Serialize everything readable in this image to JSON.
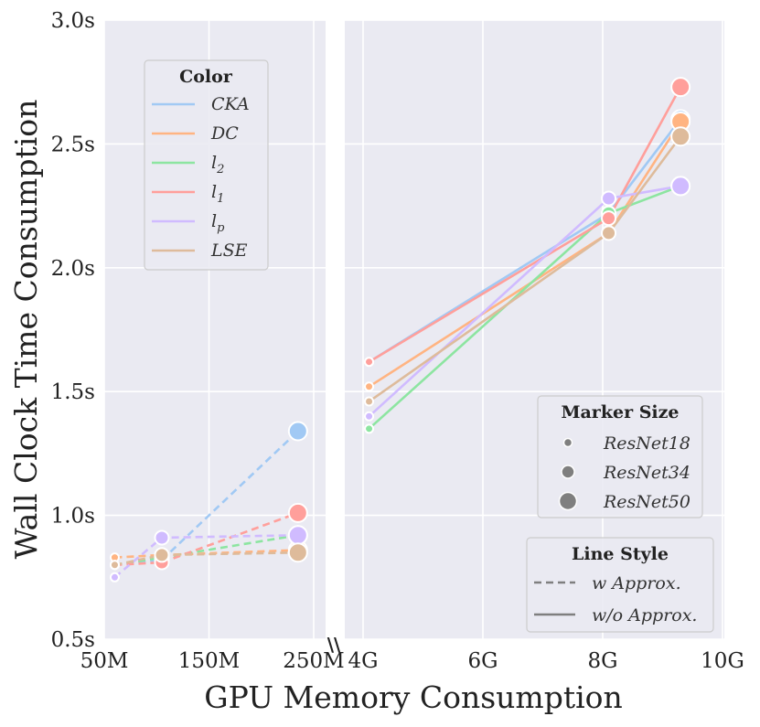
{
  "chart_data": {
    "type": "line",
    "title": "",
    "xlabel": "GPU Memory Consumption",
    "ylabel": "Wall Clock Time Consumption",
    "ylim": [
      0.5,
      3.0
    ],
    "yticks": [
      "0.5s",
      "1.0s",
      "1.5s",
      "2.0s",
      "2.5s",
      "3.0s"
    ],
    "ytick_values": [
      0.5,
      1.0,
      1.5,
      2.0,
      2.5,
      3.0
    ],
    "x_segments": [
      {
        "range_mb": [
          50,
          280
        ],
        "ticks": [
          {
            "value": 50,
            "label": "50M"
          },
          {
            "value": 150,
            "label": "150M"
          },
          {
            "value": 250,
            "label": "250M"
          }
        ]
      },
      {
        "range_gb": [
          3.9,
          10
        ],
        "ticks": [
          {
            "value": 4,
            "label": "4G"
          },
          {
            "value": 6,
            "label": "6G"
          },
          {
            "value": 8,
            "label": "8G"
          },
          {
            "value": 10,
            "label": "10G"
          }
        ]
      }
    ],
    "axis_break_mark": "\\\\",
    "grid": true,
    "legends": {
      "color": {
        "title": "Color",
        "placement": "top-left",
        "entries": [
          {
            "key": "CKA",
            "label": "CKA",
            "sub": "",
            "color": "#a1c9f4"
          },
          {
            "key": "DC",
            "label": "DC",
            "sub": "",
            "color": "#ffb482"
          },
          {
            "key": "l2",
            "label": "l",
            "sub": "2",
            "color": "#8de5a1"
          },
          {
            "key": "l1",
            "label": "l",
            "sub": "1",
            "color": "#ff9f9b"
          },
          {
            "key": "lp",
            "label": "l",
            "sub": "p",
            "color": "#d0bbff"
          },
          {
            "key": "LSE",
            "label": "LSE",
            "sub": "",
            "color": "#debb9b"
          }
        ]
      },
      "marker_size": {
        "title": "Marker Size",
        "placement": "center-right",
        "entries": [
          {
            "label": "ResNet18",
            "size": "small"
          },
          {
            "label": "ResNet34",
            "size": "medium"
          },
          {
            "label": "ResNet50",
            "size": "large"
          }
        ]
      },
      "line_style": {
        "title": "Line Style",
        "placement": "bottom-right",
        "entries": [
          {
            "label": "w Approx.",
            "style": "dashed"
          },
          {
            "label": "w/o Approx.",
            "style": "solid"
          }
        ]
      }
    },
    "series": [
      {
        "key": "CKA",
        "style": "dashed",
        "segment": 0,
        "points": [
          {
            "x": 60,
            "y": 0.8,
            "size": "small"
          },
          {
            "x": 105,
            "y": 0.82,
            "size": "medium"
          },
          {
            "x": 235,
            "y": 1.34,
            "size": "large"
          }
        ]
      },
      {
        "key": "DC",
        "style": "dashed",
        "segment": 0,
        "points": [
          {
            "x": 60,
            "y": 0.83,
            "size": "small"
          },
          {
            "x": 105,
            "y": 0.84,
            "size": "medium"
          },
          {
            "x": 235,
            "y": 0.86,
            "size": "large"
          }
        ]
      },
      {
        "key": "l2",
        "style": "dashed",
        "segment": 0,
        "points": [
          {
            "x": 60,
            "y": 0.8,
            "size": "small"
          },
          {
            "x": 105,
            "y": 0.83,
            "size": "medium"
          },
          {
            "x": 235,
            "y": 0.92,
            "size": "large"
          }
        ]
      },
      {
        "key": "l1",
        "style": "dashed",
        "segment": 0,
        "points": [
          {
            "x": 60,
            "y": 0.8,
            "size": "small"
          },
          {
            "x": 105,
            "y": 0.81,
            "size": "medium"
          },
          {
            "x": 235,
            "y": 1.01,
            "size": "large"
          }
        ]
      },
      {
        "key": "lp",
        "style": "dashed",
        "segment": 0,
        "points": [
          {
            "x": 60,
            "y": 0.75,
            "size": "small"
          },
          {
            "x": 105,
            "y": 0.91,
            "size": "medium"
          },
          {
            "x": 235,
            "y": 0.92,
            "size": "large"
          }
        ]
      },
      {
        "key": "LSE",
        "style": "dashed",
        "segment": 0,
        "points": [
          {
            "x": 60,
            "y": 0.8,
            "size": "small"
          },
          {
            "x": 105,
            "y": 0.84,
            "size": "medium"
          },
          {
            "x": 235,
            "y": 0.85,
            "size": "large"
          }
        ]
      },
      {
        "key": "CKA",
        "style": "solid",
        "segment": 1,
        "points": [
          {
            "x": 4.1,
            "y": 1.62,
            "size": "small"
          },
          {
            "x": 8.1,
            "y": 2.22,
            "size": "medium"
          },
          {
            "x": 9.3,
            "y": 2.6,
            "size": "large"
          }
        ]
      },
      {
        "key": "DC",
        "style": "solid",
        "segment": 1,
        "points": [
          {
            "x": 4.1,
            "y": 1.52,
            "size": "small"
          },
          {
            "x": 8.1,
            "y": 2.14,
            "size": "medium"
          },
          {
            "x": 9.3,
            "y": 2.59,
            "size": "large"
          }
        ]
      },
      {
        "key": "l2",
        "style": "solid",
        "segment": 1,
        "points": [
          {
            "x": 4.1,
            "y": 1.35,
            "size": "small"
          },
          {
            "x": 8.1,
            "y": 2.22,
            "size": "medium"
          },
          {
            "x": 9.3,
            "y": 2.33,
            "size": "large"
          }
        ]
      },
      {
        "key": "l1",
        "style": "solid",
        "segment": 1,
        "points": [
          {
            "x": 4.1,
            "y": 1.62,
            "size": "small"
          },
          {
            "x": 8.1,
            "y": 2.2,
            "size": "medium"
          },
          {
            "x": 9.3,
            "y": 2.73,
            "size": "large"
          }
        ]
      },
      {
        "key": "lp",
        "style": "solid",
        "segment": 1,
        "points": [
          {
            "x": 4.1,
            "y": 1.4,
            "size": "small"
          },
          {
            "x": 8.1,
            "y": 2.28,
            "size": "medium"
          },
          {
            "x": 9.3,
            "y": 2.33,
            "size": "large"
          }
        ]
      },
      {
        "key": "LSE",
        "style": "solid",
        "segment": 1,
        "points": [
          {
            "x": 4.1,
            "y": 1.46,
            "size": "small"
          },
          {
            "x": 8.1,
            "y": 2.14,
            "size": "medium"
          },
          {
            "x": 9.3,
            "y": 2.53,
            "size": "large"
          }
        ]
      }
    ]
  }
}
